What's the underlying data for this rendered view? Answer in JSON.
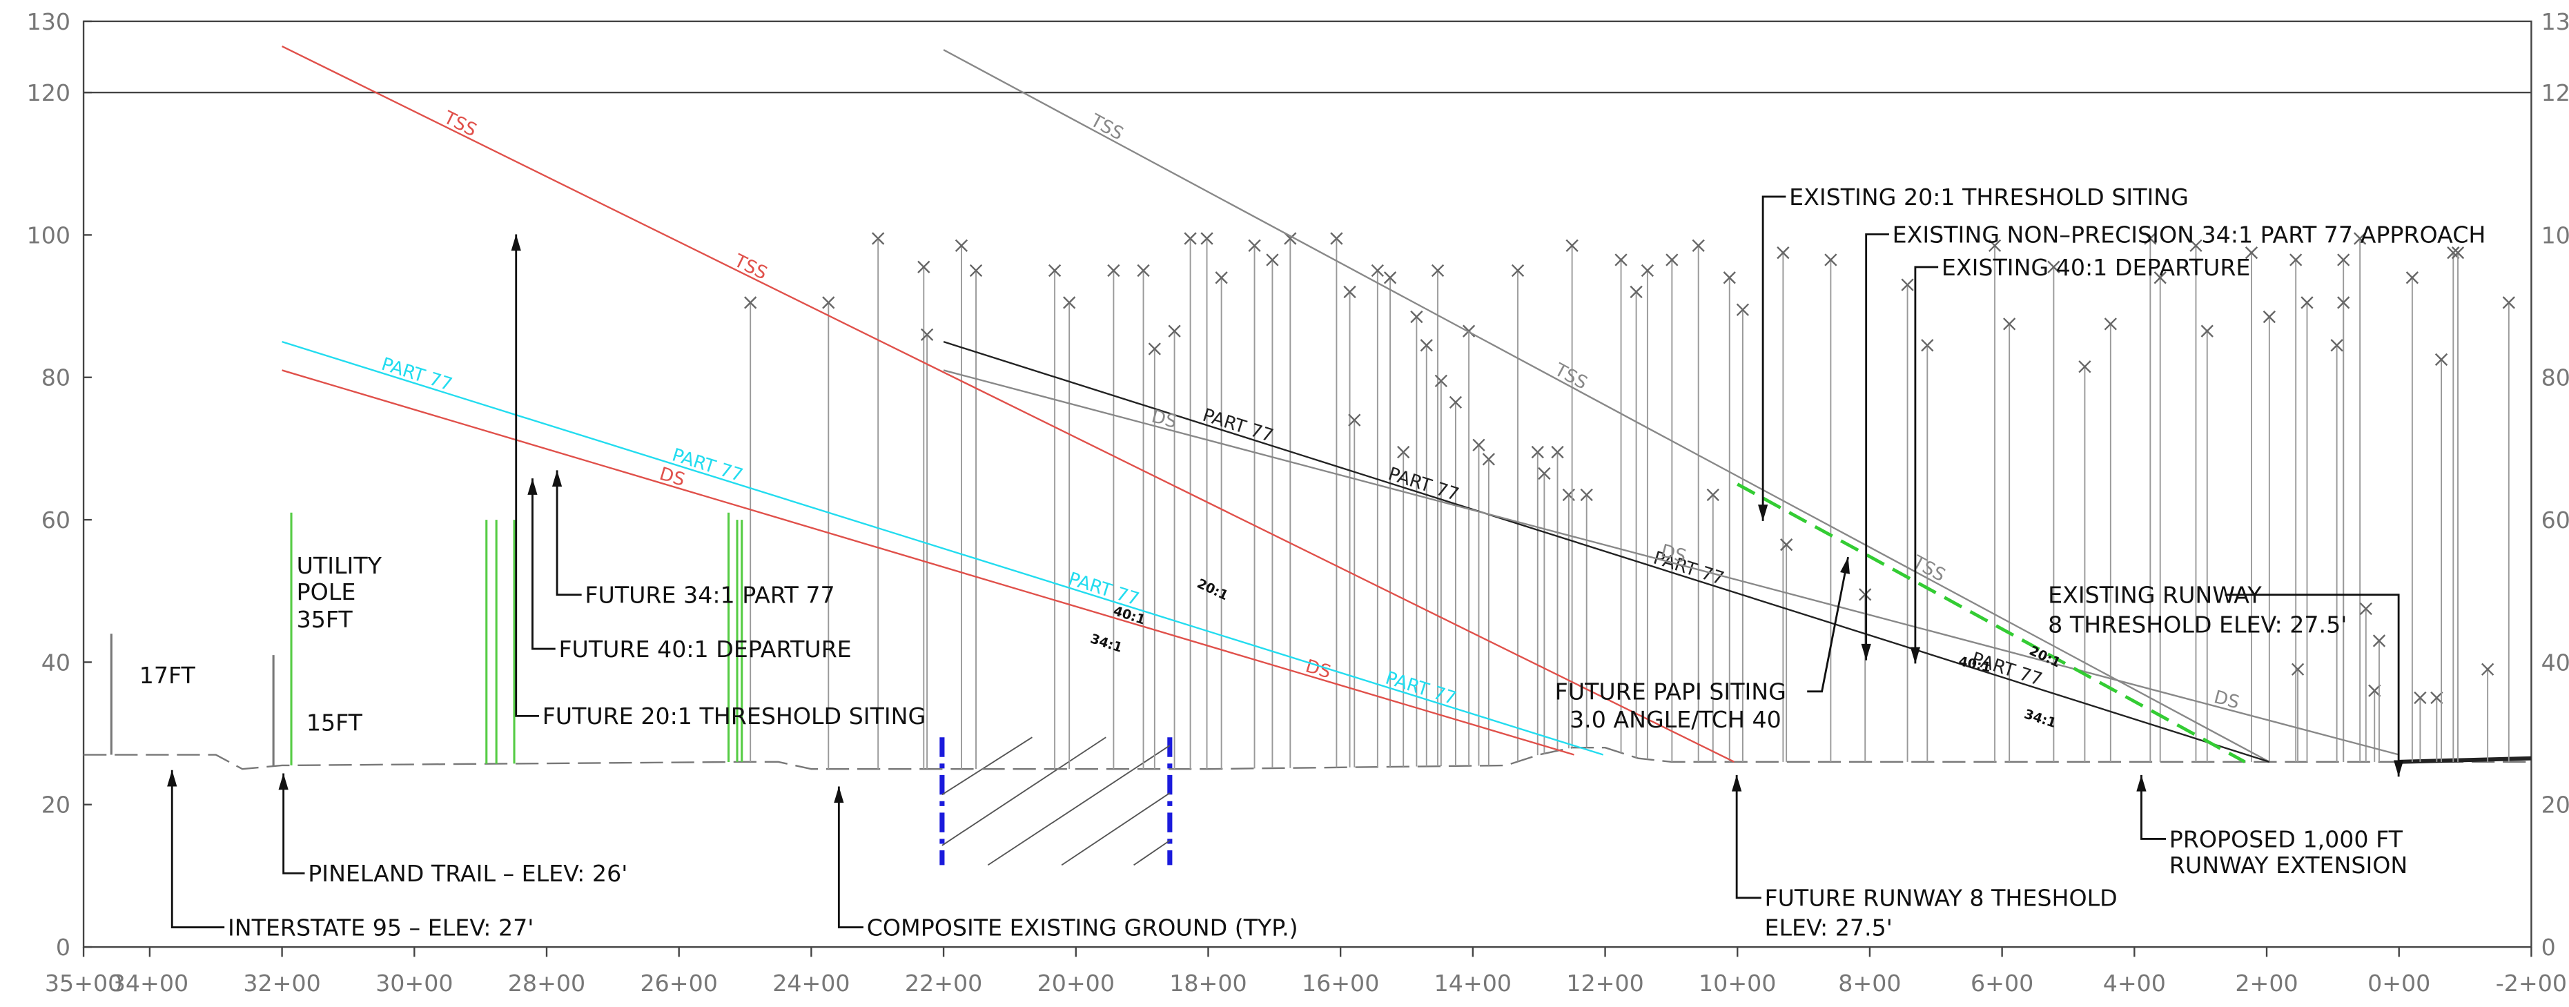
{
  "chart_data": {
    "type": "line",
    "xlim": [
      3500,
      -200
    ],
    "ylim": [
      0,
      130
    ],
    "xticks": [
      {
        "value": 3500,
        "label": "35+00"
      },
      {
        "value": 3400,
        "label": "34+00"
      },
      {
        "value": 3200,
        "label": "32+00"
      },
      {
        "value": 3000,
        "label": "30+00"
      },
      {
        "value": 2800,
        "label": "28+00"
      },
      {
        "value": 2600,
        "label": "26+00"
      },
      {
        "value": 2400,
        "label": "24+00"
      },
      {
        "value": 2200,
        "label": "22+00"
      },
      {
        "value": 2000,
        "label": "20+00"
      },
      {
        "value": 1800,
        "label": "18+00"
      },
      {
        "value": 1600,
        "label": "16+00"
      },
      {
        "value": 1400,
        "label": "14+00"
      },
      {
        "value": 1200,
        "label": "12+00"
      },
      {
        "value": 1000,
        "label": "10+00"
      },
      {
        "value": 800,
        "label": "8+00"
      },
      {
        "value": 600,
        "label": "6+00"
      },
      {
        "value": 400,
        "label": "4+00"
      },
      {
        "value": 200,
        "label": "2+00"
      },
      {
        "value": 0,
        "label": "0+00"
      },
      {
        "value": -200,
        "label": "-2+00"
      }
    ],
    "yticks": [
      0,
      20,
      40,
      60,
      80,
      100,
      120,
      130
    ],
    "hlines": [
      120
    ],
    "series": [
      {
        "name": "TSS",
        "color": "#e0504a",
        "x": [
          3200,
          1005
        ],
        "values": [
          126.5,
          26
        ]
      },
      {
        "name": "DS",
        "color": "#e0504a",
        "x": [
          3200,
          1247
        ],
        "values": [
          81,
          27
        ]
      },
      {
        "name": "PART 77",
        "color": "#22dcef",
        "x": [
          3200,
          1203
        ],
        "values": [
          85,
          27
        ]
      },
      {
        "name": "TSS",
        "color": "#888888",
        "x": [
          2200,
          196
        ],
        "values": [
          126,
          26
        ]
      },
      {
        "name": "PART 77",
        "color": "#222222",
        "x": [
          2200,
          196
        ],
        "values": [
          85,
          26
        ]
      },
      {
        "name": "DS",
        "color": "#888888",
        "x": [
          2200,
          0
        ],
        "values": [
          81,
          27
        ]
      },
      {
        "color": "#33cc33",
        "dashed": true,
        "x": [
          1000,
          233
        ],
        "values": [
          65,
          26
        ]
      }
    ],
    "runway": {
      "color": "#222222",
      "x": [
        0,
        -200
      ],
      "values": [
        26,
        26.5
      ]
    },
    "ground": {
      "color": "#777777",
      "x": [
        3500,
        3460,
        3450,
        3300,
        3260,
        3200,
        2500,
        2450,
        2400,
        2250,
        1800,
        1350,
        1300,
        1250,
        1200,
        1150,
        1100,
        1050,
        1000,
        0,
        -200
      ],
      "values": [
        27,
        27,
        27,
        27,
        25,
        25.5,
        26,
        26,
        25,
        25,
        25,
        25.5,
        27,
        28,
        28,
        26.5,
        26,
        26,
        26,
        26,
        26
      ]
    },
    "poles": {
      "x": [
        3458,
        3213,
        3186,
        2891,
        2876,
        2849,
        2525,
        2512,
        2505
      ],
      "values": [
        44,
        41,
        61,
        60,
        60,
        60,
        61,
        60,
        60
      ],
      "colors": [
        "#777777",
        "#777777",
        "#55cc44",
        "#55cc44",
        "#55cc44",
        "#55cc44",
        "#55cc44",
        "#55cc44",
        "#55cc44"
      ]
    },
    "obstructions": {
      "color": "#666666",
      "x": [
        2492,
        2374,
        2299,
        2230,
        2225,
        2173,
        2151,
        2032,
        2010,
        1943,
        1898,
        1881,
        1851,
        1827,
        1802,
        1780,
        1730,
        1703,
        1676,
        1606,
        1586,
        1579,
        1544,
        1525,
        1505,
        1485,
        1470,
        1453,
        1448,
        1426,
        1406,
        1391,
        1376,
        1332,
        1302,
        1292,
        1272,
        1255,
        1250,
        1228,
        1176,
        1153,
        1136,
        1099,
        1059,
        1037,
        1012,
        992,
        931,
        926,
        859,
        807,
        743,
        713,
        611,
        589,
        522,
        475,
        436,
        376,
        361,
        307,
        290,
        223,
        196,
        156,
        153,
        139,
        94,
        84,
        84,
        59,
        50,
        37,
        30,
        -20,
        -32,
        -57,
        -64,
        -82,
        -89,
        -134,
        -166
      ],
      "values": [
        90.5,
        90.5,
        99.5,
        95.5,
        86,
        98.5,
        95,
        95,
        90.5,
        95,
        95,
        84,
        86.5,
        99.5,
        99.5,
        94,
        98.5,
        96.5,
        99.5,
        99.5,
        92,
        74,
        95,
        94,
        69.5,
        88.5,
        84.5,
        95,
        79.5,
        76.5,
        86.5,
        70.5,
        68.5,
        95,
        69.5,
        66.5,
        69.5,
        63.5,
        98.5,
        63.5,
        96.5,
        92,
        95,
        96.5,
        98.5,
        63.5,
        94,
        89.5,
        97.5,
        56.5,
        96.5,
        49.5,
        93,
        84.5,
        98.5,
        87.5,
        95.5,
        81.5,
        87.5,
        99.5,
        94,
        98.5,
        86.5,
        97.5,
        88.5,
        96.5,
        39,
        90.5,
        84.5,
        96.5,
        90.5,
        99.5,
        47.5,
        36,
        43,
        94,
        35,
        35,
        82.5,
        97.5,
        97.5,
        39,
        90.5
      ]
    },
    "annotations": [
      {
        "lines": [
          "17FT"
        ]
      },
      {
        "lines": [
          "UTILITY",
          "POLE",
          "35FT"
        ]
      },
      {
        "lines": [
          "15FT"
        ]
      },
      {
        "lines": [
          "FUTURE 34:1 PART 77"
        ]
      },
      {
        "lines": [
          "FUTURE 40:1 DEPARTURE"
        ]
      },
      {
        "lines": [
          "FUTURE 20:1 THRESHOLD SITING"
        ]
      },
      {
        "lines": [
          "PINELAND TRAIL – ELEV: 26'"
        ]
      },
      {
        "lines": [
          "INTERSTATE 95 – ELEV: 27'"
        ]
      },
      {
        "lines": [
          "COMPOSITE EXISTING GROUND (TYP.)"
        ]
      },
      {
        "lines": [
          "EXISTING 20:1 THRESHOLD SITING"
        ]
      },
      {
        "lines": [
          "EXISTING NON–PRECISION 34:1 PART 77 APPROACH"
        ]
      },
      {
        "lines": [
          "EXISTING 40:1 DEPARTURE"
        ]
      },
      {
        "lines": [
          "EXISTING RUNWAY",
          "8 THRESHOLD ELEV: 27.5'"
        ]
      },
      {
        "lines": [
          "FUTURE PAPI SITING",
          "3.0 ANGLE/TCH 40"
        ]
      },
      {
        "lines": [
          "FUTURE RUNWAY 8 THESHOLD",
          "ELEV: 27.5'"
        ]
      },
      {
        "lines": [
          "PROPOSED 1,000 FT",
          "RUNWAY EXTENSION"
        ]
      },
      {
        "lines": [
          "40:1"
        ]
      },
      {
        "lines": [
          "34:1"
        ]
      },
      {
        "lines": [
          "20:1"
        ]
      },
      {
        "lines": [
          "20:1"
        ]
      },
      {
        "lines": [
          "40:1"
        ]
      },
      {
        "lines": [
          "34:1"
        ]
      }
    ]
  }
}
